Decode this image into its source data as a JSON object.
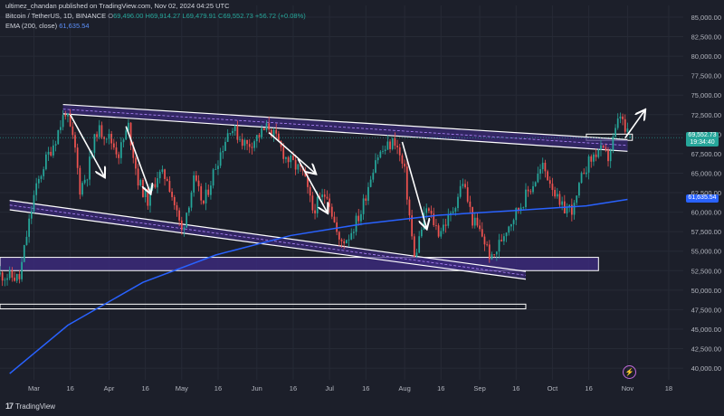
{
  "header": {
    "published": "ultimez_chandan published on TradingView.com, Nov 02, 2024 04:25 UTC",
    "symbol": "Bitcoin / TetherUS, 1D, BINANCE",
    "ohlc_label": "O",
    "ohlc": "69,496.00 H69,914.27 L69,479.91 C69,552.73 +56.72 (+0.08%)",
    "ema_label": "EMA (200, close)",
    "ema_value": "61,635.54"
  },
  "badges": {
    "price": "69,552.73",
    "countdown": "19:34:40",
    "ema": "61,635.54"
  },
  "footer": {
    "brand": "TradingView",
    "logo_text": "17"
  },
  "colors": {
    "up": "#26a69a",
    "down": "#ef5350",
    "ema": "#2962ff",
    "channel": "#ffffff",
    "fill": "#3b2a7a",
    "background": "#1c1f2a"
  },
  "chart_data": {
    "type": "candlestick",
    "title": "Bitcoin / TetherUS, 1D, BINANCE",
    "xlabel": "",
    "ylabel": "",
    "x_ticks": [
      "Mar",
      "16",
      "Apr",
      "16",
      "May",
      "16",
      "Jun",
      "16",
      "Jul",
      "16",
      "Aug",
      "16",
      "Sep",
      "16",
      "Oct",
      "16",
      "Nov",
      "18"
    ],
    "x_tick_dates": [
      "2024-03-01",
      "2024-03-16",
      "2024-04-01",
      "2024-04-16",
      "2024-05-01",
      "2024-05-16",
      "2024-06-01",
      "2024-06-16",
      "2024-07-01",
      "2024-07-16",
      "2024-08-01",
      "2024-08-16",
      "2024-09-01",
      "2024-09-16",
      "2024-10-01",
      "2024-10-16",
      "2024-11-01",
      "2024-11-18"
    ],
    "x_range": [
      "2024-02-16",
      "2024-11-24"
    ],
    "y_ticks": [
      85000,
      82500,
      80000,
      77500,
      75000,
      72500,
      70000,
      67500,
      65000,
      62500,
      60000,
      57500,
      55000,
      52500,
      50000,
      47500,
      45000,
      42500,
      40000
    ],
    "y_tick_labels": [
      "85,000.00",
      "82,500.00",
      "80,000.00",
      "77,500.00",
      "75,000.00",
      "72,500.00",
      "70,000.00",
      "67,500.00",
      "65,000.00",
      "62,500.00",
      "60,000.00",
      "57,500.00",
      "55,000.00",
      "52,500.00",
      "50,000.00",
      "47,500.00",
      "45,000.00",
      "42,500.00",
      "40,000.00"
    ],
    "y_range": [
      38500,
      86500
    ],
    "price_path": [
      [
        "2024-02-16",
        52000
      ],
      [
        "2024-02-24",
        51500
      ],
      [
        "2024-02-27",
        57000
      ],
      [
        "2024-03-01",
        62000
      ],
      [
        "2024-03-05",
        66000
      ],
      [
        "2024-03-10",
        69500
      ],
      [
        "2024-03-14",
        73000
      ],
      [
        "2024-03-18",
        68000
      ],
      [
        "2024-03-20",
        63000
      ],
      [
        "2024-03-23",
        65000
      ],
      [
        "2024-03-27",
        70500
      ],
      [
        "2024-03-31",
        70000
      ],
      [
        "2024-04-05",
        67500
      ],
      [
        "2024-04-09",
        71000
      ],
      [
        "2024-04-13",
        64000
      ],
      [
        "2024-04-17",
        61500
      ],
      [
        "2024-04-21",
        64800
      ],
      [
        "2024-04-25",
        64500
      ],
      [
        "2024-05-01",
        57500
      ],
      [
        "2024-05-06",
        64000
      ],
      [
        "2024-05-10",
        61000
      ],
      [
        "2024-05-15",
        66000
      ],
      [
        "2024-05-21",
        71000
      ],
      [
        "2024-05-28",
        68500
      ],
      [
        "2024-06-06",
        71000
      ],
      [
        "2024-06-13",
        67000
      ],
      [
        "2024-06-20",
        65000
      ],
      [
        "2024-06-24",
        60300
      ],
      [
        "2024-06-30",
        62600
      ],
      [
        "2024-07-05",
        56000
      ],
      [
        "2024-07-09",
        57000
      ],
      [
        "2024-07-14",
        60000
      ],
      [
        "2024-07-20",
        67000
      ],
      [
        "2024-07-28",
        69200
      ],
      [
        "2024-08-01",
        65000
      ],
      [
        "2024-08-05",
        54000
      ],
      [
        "2024-08-10",
        60500
      ],
      [
        "2024-08-15",
        57500
      ],
      [
        "2024-08-20",
        59500
      ],
      [
        "2024-08-25",
        64000
      ],
      [
        "2024-08-29",
        59000
      ],
      [
        "2024-09-02",
        57000
      ],
      [
        "2024-09-06",
        53800
      ],
      [
        "2024-09-12",
        58000
      ],
      [
        "2024-09-18",
        61000
      ],
      [
        "2024-09-27",
        65800
      ],
      [
        "2024-10-01",
        63500
      ],
      [
        "2024-10-04",
        60500
      ],
      [
        "2024-10-10",
        60500
      ],
      [
        "2024-10-14",
        65500
      ],
      [
        "2024-10-20",
        68000
      ],
      [
        "2024-10-24",
        67000
      ],
      [
        "2024-10-29",
        72500
      ],
      [
        "2024-10-31",
        70300
      ],
      [
        "2024-11-02",
        69552.73
      ]
    ],
    "last_candle": {
      "date": "2024-11-02",
      "open": 69496.0,
      "high": 69914.27,
      "low": 69479.91,
      "close": 69552.73,
      "change": 56.72,
      "change_pct": 0.08
    },
    "ema": {
      "name": "EMA (200, close)",
      "last": 61635.54,
      "points": [
        [
          "2024-02-20",
          39300
        ],
        [
          "2024-03-15",
          45500
        ],
        [
          "2024-04-15",
          51000
        ],
        [
          "2024-05-15",
          54500
        ],
        [
          "2024-06-15",
          57000
        ],
        [
          "2024-07-15",
          58500
        ],
        [
          "2024-08-15",
          59600
        ],
        [
          "2024-09-15",
          60200
        ],
        [
          "2024-10-15",
          60800
        ],
        [
          "2024-11-01",
          61635.54
        ]
      ]
    },
    "channel_upper": [
      [
        [
          "2024-03-13",
          73800
        ],
        [
          "2024-11-01",
          69300
        ]
      ],
      [
        [
          "2024-03-13",
          72600
        ],
        [
          "2024-11-01",
          67800
        ]
      ]
    ],
    "channel_lower": [
      [
        [
          "2024-02-20",
          61500
        ],
        [
          "2024-09-20",
          52400
        ]
      ],
      [
        [
          "2024-02-20",
          60300
        ],
        [
          "2024-09-20",
          51400
        ]
      ]
    ],
    "zones": [
      {
        "from": "2024-02-16",
        "to": "2024-10-20",
        "top": 54200,
        "bottom": 52500,
        "filled": true
      },
      {
        "from": "2024-02-16",
        "to": "2024-09-20",
        "top": 48200,
        "bottom": 47600,
        "filled": false
      },
      {
        "from": "2024-10-15",
        "to": "2024-11-03",
        "top": 70000,
        "bottom": 69200,
        "filled": false
      }
    ],
    "arrows": [
      [
        [
          "2024-03-16",
          72500
        ],
        [
          "2024-03-30",
          64600
        ]
      ],
      [
        [
          "2024-04-08",
          71000
        ],
        [
          "2024-04-18",
          62500
        ]
      ],
      [
        [
          "2024-06-06",
          70200
        ],
        [
          "2024-06-25",
          65000
        ]
      ],
      [
        [
          "2024-06-18",
          66800
        ],
        [
          "2024-06-30",
          60000
        ]
      ],
      [
        [
          "2024-07-31",
          69000
        ],
        [
          "2024-08-10",
          58000
        ]
      ],
      [
        [
          "2024-10-31",
          69500
        ],
        [
          "2024-11-08",
          73000
        ]
      ]
    ]
  }
}
